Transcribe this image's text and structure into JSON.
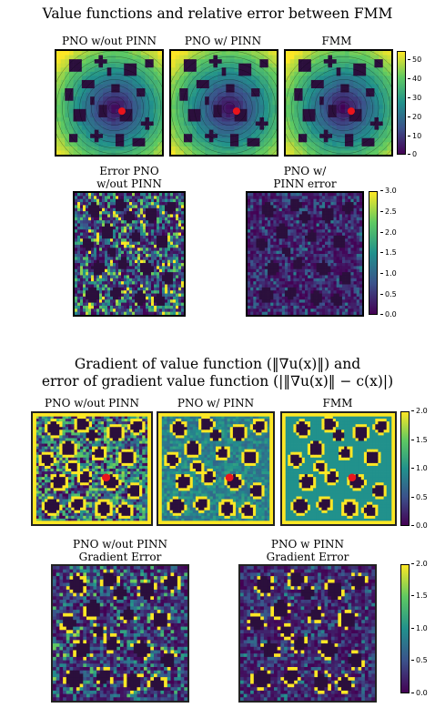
{
  "section1": {
    "title": "Value functions and relative error between FMM",
    "panels": [
      {
        "title": "PNO w/out PINN"
      },
      {
        "title": "PNO w/ PINN"
      },
      {
        "title": "FMM"
      }
    ],
    "colorbar_ticks": [
      "50",
      "40",
      "30",
      "20",
      "10",
      "0"
    ],
    "error_panels": [
      {
        "title_line1": "Error PNO",
        "title_line2": "w/out PINN"
      },
      {
        "title_line1": "PNO w/",
        "title_line2": "PINN error"
      }
    ],
    "error_colorbar_ticks": [
      "3.0",
      "2.5",
      "2.0",
      "1.5",
      "1.0",
      "0.5",
      "0.0"
    ]
  },
  "section2": {
    "title_line1": "Gradient of value function (‖∇u(x)‖) and",
    "title_line2": "error of gradient value function (|‖∇u(x)‖ − c(x)|)",
    "panels": [
      {
        "title": "PNO w/out PINN"
      },
      {
        "title": "PNO w/ PINN"
      },
      {
        "title": "FMM"
      }
    ],
    "colorbar_ticks": [
      "2.0",
      "1.5",
      "1.0",
      "0.5",
      "0.0"
    ],
    "error_panels": [
      {
        "title_line1": "PNO w/out PINN",
        "title_line2": "Gradient Error"
      },
      {
        "title_line1": "PNO w PINN",
        "title_line2": "Gradient Error"
      }
    ],
    "error_colorbar_ticks": [
      "2.0",
      "1.5",
      "1.0",
      "0.5",
      "0.0"
    ]
  },
  "colors": {
    "viridis_low": "#440154",
    "viridis_mid": "#21918c",
    "viridis_high": "#fde725",
    "obstacle": "#2b0f3c",
    "source_point": "#e8151c"
  }
}
